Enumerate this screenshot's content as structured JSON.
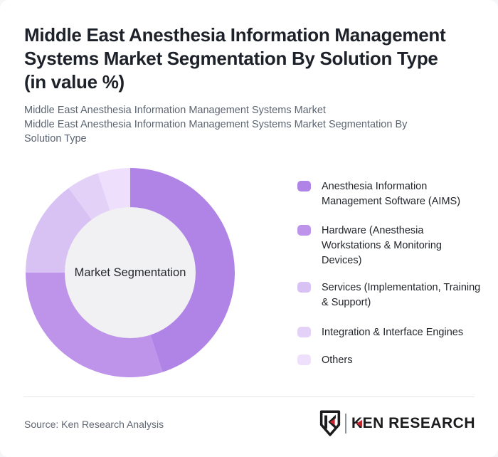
{
  "page": {
    "background_color": "#f5f6f8",
    "card_color": "#ffffff"
  },
  "header": {
    "title": "Middle East Anesthesia Information Management Systems Market Segmentation By Solution Type (in value %)",
    "subtitle_line1": "Middle East Anesthesia Information Management Systems Market",
    "subtitle_line2": "Middle East Anesthesia Information Management Systems Market Segmentation By Solution Type"
  },
  "chart_data": {
    "type": "pie",
    "donut": true,
    "title": "Middle East Anesthesia Information Management Systems Market Segmentation By Solution Type (in value %)",
    "units": "value %",
    "center_label": "Market Segmentation",
    "start_angle_deg": -90,
    "direction": "clockwise",
    "legend_position": "right",
    "segments": [
      {
        "label": "Anesthesia Information Management Software (AIMS)",
        "value": 45,
        "color": "#b083e7"
      },
      {
        "label": "Hardware (Anesthesia Workstations & Monitoring Devices)",
        "value": 30,
        "color": "#bd94ea"
      },
      {
        "label": "Services (Implementation, Training & Support)",
        "value": 15,
        "color": "#d8c2f4"
      },
      {
        "label": "Integration & Interface Engines",
        "value": 5,
        "color": "#e4d1f8"
      },
      {
        "label": "Others",
        "value": 5,
        "color": "#eedffc"
      }
    ]
  },
  "footer": {
    "source": "Source: Ken Research Analysis",
    "logo_text": "KEN RESEARCH",
    "logo_red": "#c9252c"
  }
}
